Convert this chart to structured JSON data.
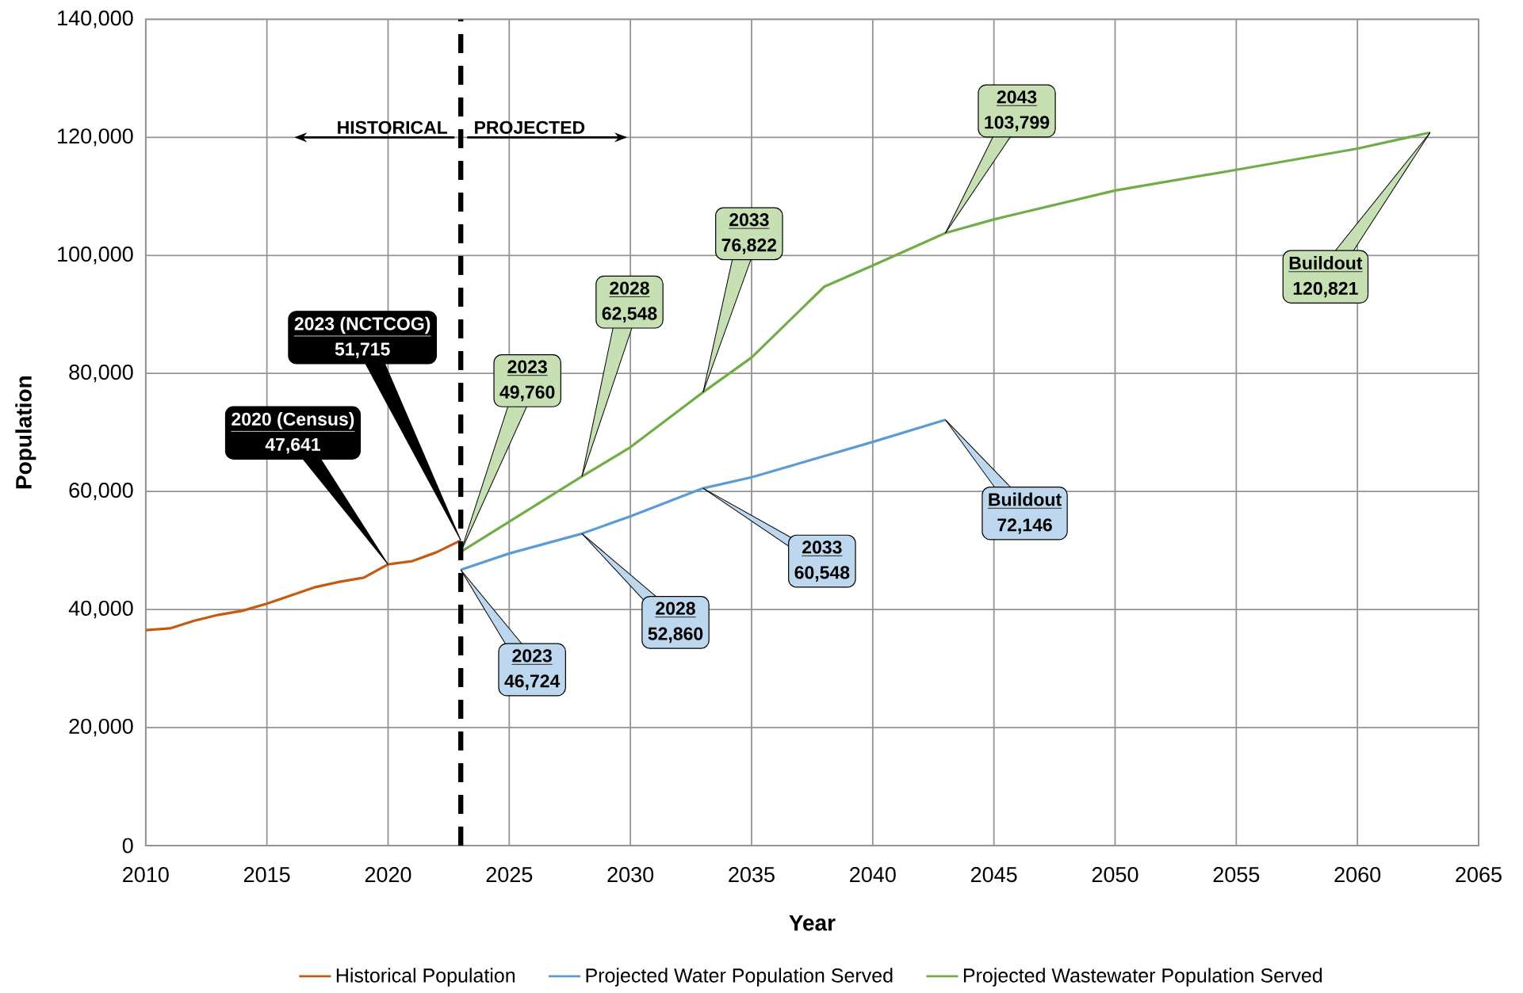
{
  "chart_data": {
    "type": "line",
    "xlabel": "Year",
    "ylabel": "Population",
    "xlim": [
      2010,
      2065
    ],
    "xticks": [
      2010,
      2015,
      2020,
      2025,
      2030,
      2035,
      2040,
      2045,
      2050,
      2055,
      2060,
      2065
    ],
    "ylim": [
      0,
      140000
    ],
    "yticks": [
      {
        "value": 0,
        "label": "0"
      },
      {
        "value": 20000,
        "label": "20,000"
      },
      {
        "value": 40000,
        "label": "40,000"
      },
      {
        "value": 60000,
        "label": "60,000"
      },
      {
        "value": 80000,
        "label": "80,000"
      },
      {
        "value": 100000,
        "label": "100,000"
      },
      {
        "value": 120000,
        "label": "120,000"
      },
      {
        "value": 140000,
        "label": "140,000"
      }
    ],
    "grid": true,
    "legend": "bottom",
    "line_style": "solid",
    "series": [
      {
        "name": "Historical Population",
        "color": "#c55a11",
        "x": [
          2010,
          2011,
          2012,
          2013,
          2014,
          2015,
          2016,
          2017,
          2018,
          2019,
          2020,
          2021,
          2022,
          2023
        ],
        "values": [
          36500,
          36800,
          38100,
          39100,
          39800,
          41000,
          42400,
          43800,
          44700,
          45400,
          47641,
          48200,
          49700,
          51715
        ],
        "value_labels": [
          null,
          null,
          null,
          null,
          null,
          null,
          null,
          null,
          null,
          null,
          "47,641",
          null,
          null,
          "51,715"
        ]
      },
      {
        "name": "Projected Water Population Served",
        "color": "#5b9bd5",
        "x": [
          2023,
          2025,
          2028,
          2030,
          2033,
          2035,
          2040,
          2043
        ],
        "values": [
          46724,
          49500,
          52860,
          55800,
          60548,
          62400,
          68400,
          72146
        ],
        "value_labels": [
          "46,724",
          null,
          "52,860",
          null,
          "60,548",
          null,
          null,
          "72,146"
        ]
      },
      {
        "name": "Projected Wastewater Population Served",
        "color": "#70ad47",
        "x": [
          2023,
          2028,
          2030,
          2033,
          2035,
          2038,
          2040,
          2043,
          2045,
          2050,
          2055,
          2060,
          2063
        ],
        "values": [
          49760,
          62548,
          67500,
          76822,
          82700,
          94700,
          98300,
          103799,
          106100,
          111000,
          114500,
          118100,
          120821
        ],
        "value_labels": [
          "49,760",
          "62,548",
          null,
          "76,822",
          null,
          null,
          null,
          "103,799",
          null,
          null,
          null,
          null,
          "120,821"
        ]
      }
    ],
    "ref_lines": [
      {
        "axis": "x",
        "value": 2023,
        "color": "#000000",
        "line_style": "dashed"
      }
    ],
    "annotations": [
      "HISTORICAL",
      "PROJECTED",
      {
        "text": "2020 (Census)",
        "x": 2020,
        "y": 47641
      },
      {
        "text": "2023 (NCTCOG)",
        "x": 2023,
        "y": 51715
      },
      {
        "text": "2023",
        "x": 2023,
        "y": 49760
      },
      {
        "text": "2028",
        "x": 2028,
        "y": 62548
      },
      {
        "text": "2033",
        "x": 2033,
        "y": 76822
      },
      {
        "text": "2043",
        "x": 2043,
        "y": 103799
      },
      {
        "text": "Buildout",
        "x": 2063,
        "y": 120821
      },
      {
        "text": "2023",
        "x": 2023,
        "y": 46724
      },
      {
        "text": "2028",
        "x": 2028,
        "y": 52860
      },
      {
        "text": "2033",
        "x": 2033,
        "y": 60548
      },
      {
        "text": "Buildout",
        "x": 2043,
        "y": 72146
      }
    ]
  }
}
